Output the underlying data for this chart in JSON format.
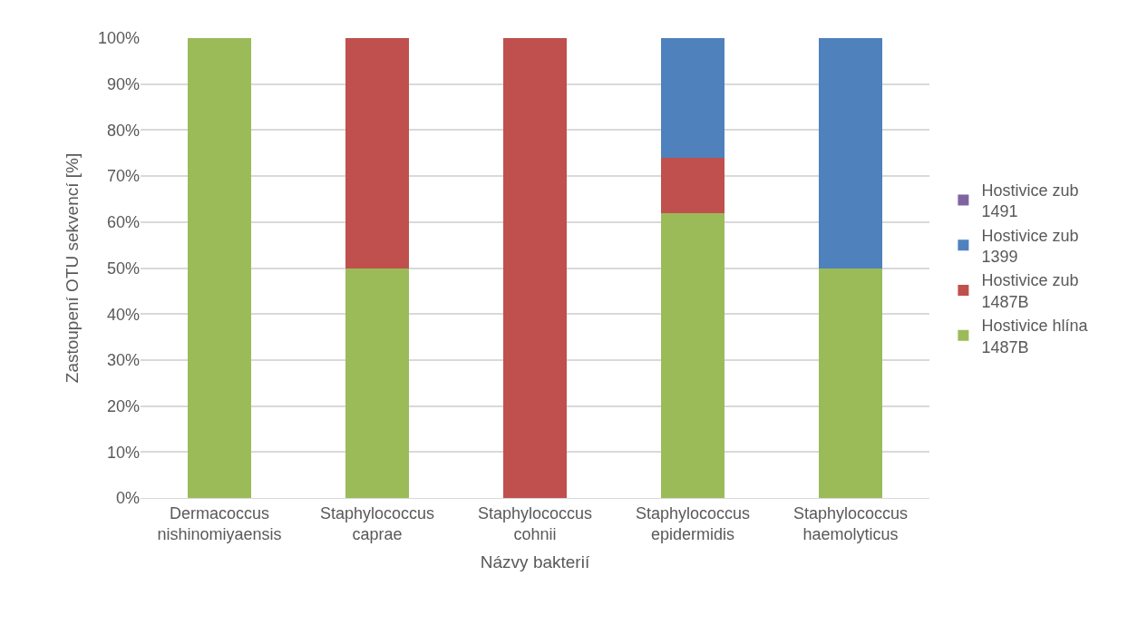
{
  "chart_data": {
    "type": "bar",
    "stacked": true,
    "xlabel": "Názvy bakterií",
    "ylabel": "Zastoupení OTU sekvencí [%]",
    "categories": [
      "Dermacoccus nishinomiyaensis",
      "Staphylococcus caprae",
      "Staphylococcus cohnii",
      "Staphylococcus epidermidis",
      "Staphylococcus haemolyticus"
    ],
    "series": [
      {
        "name": "Hostivice hlína 1487B",
        "color": "#9bbb59",
        "values": [
          100,
          50,
          0,
          62,
          50
        ]
      },
      {
        "name": "Hostivice zub 1487B",
        "color": "#c0504d",
        "values": [
          0,
          50,
          100,
          12,
          0
        ]
      },
      {
        "name": "Hostivice zub 1399",
        "color": "#4f81bd",
        "values": [
          0,
          0,
          0,
          26,
          50
        ]
      },
      {
        "name": "Hostivice zub 1491",
        "color": "#8064a2",
        "values": [
          0,
          0,
          0,
          0,
          0
        ]
      }
    ],
    "ylim": [
      0,
      100
    ],
    "yticks": [
      {
        "value": 0,
        "label": "0%"
      },
      {
        "value": 10,
        "label": "10%"
      },
      {
        "value": 20,
        "label": "20%"
      },
      {
        "value": 30,
        "label": "30%"
      },
      {
        "value": 40,
        "label": "40%"
      },
      {
        "value": 50,
        "label": "50%"
      },
      {
        "value": 60,
        "label": "60%"
      },
      {
        "value": 70,
        "label": "70%"
      },
      {
        "value": 80,
        "label": "80%"
      },
      {
        "value": 90,
        "label": "90%"
      },
      {
        "value": 100,
        "label": "100%"
      }
    ],
    "grid": "y",
    "legend": "right"
  }
}
